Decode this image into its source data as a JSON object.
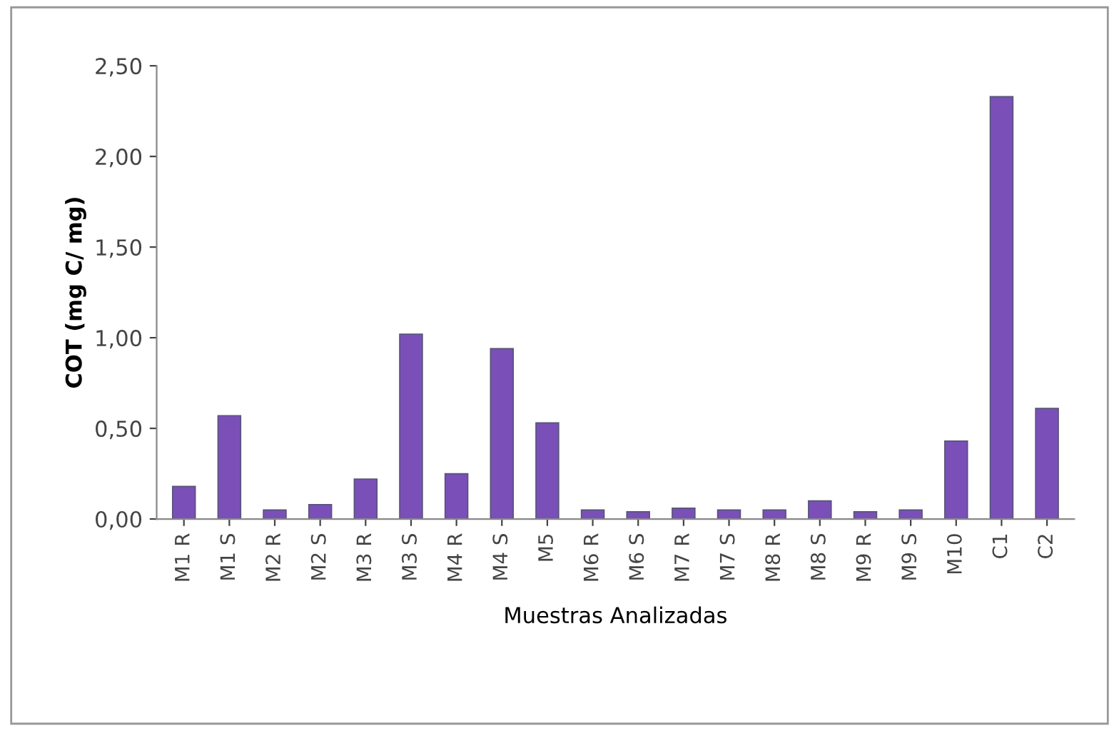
{
  "chart_data": {
    "type": "bar",
    "xlabel": "Muestras Analizadas",
    "ylabel": "COT (mg C/ mg)",
    "categories": [
      "M1 R",
      "M1 S",
      "M2 R",
      "M2 S",
      "M3 R",
      "M3 S",
      "M4 R",
      "M4 S",
      "M5",
      "M6 R",
      "M6 S",
      "M7 R",
      "M7 S",
      "M8 R",
      "M8 S",
      "M9 R",
      "M9 S",
      "M10",
      "C1",
      "C2"
    ],
    "values": [
      0.18,
      0.57,
      0.05,
      0.08,
      0.22,
      1.02,
      0.25,
      0.94,
      0.53,
      0.05,
      0.04,
      0.06,
      0.05,
      0.05,
      0.1,
      0.04,
      0.05,
      0.43,
      2.33,
      0.61
    ],
    "color": "#7b4fb8",
    "ylim": [
      0,
      2.5
    ],
    "yticks": [
      {
        "value": 0,
        "label": "0,00"
      },
      {
        "value": 0.5,
        "label": "0,50"
      },
      {
        "value": 1.0,
        "label": "1,00"
      },
      {
        "value": 1.5,
        "label": "1,50"
      },
      {
        "value": 2.0,
        "label": "2,00"
      },
      {
        "value": 2.5,
        "label": "2,50"
      }
    ],
    "grid": false,
    "legend": false
  }
}
